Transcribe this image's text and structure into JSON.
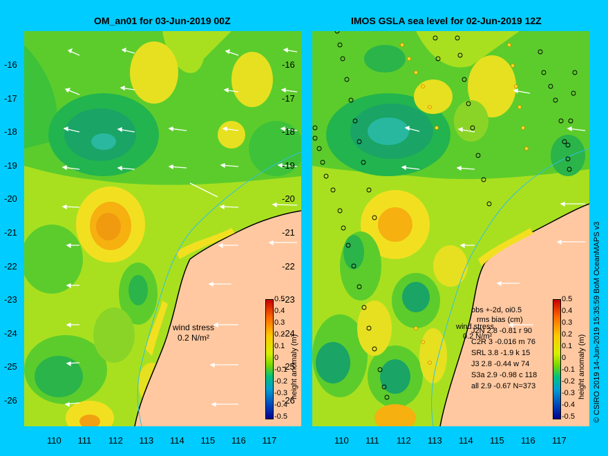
{
  "left_panel": {
    "title": "OM_an01 for 03-Jun-2019 00Z"
  },
  "right_panel": {
    "title": "IMOS GSLA sea level  for 02-Jun-2019 12Z"
  },
  "lat_ticks": [
    "-16",
    "-17",
    "-18",
    "-19",
    "-20",
    "-21",
    "-22",
    "-23",
    "-24",
    "-25",
    "-26"
  ],
  "lon_ticks": [
    "110",
    "111",
    "112",
    "113",
    "114",
    "115",
    "116",
    "117"
  ],
  "colorbar": {
    "label": "height anomaly (m)",
    "ticks": [
      "0.5",
      "0.4",
      "0.3",
      "0.2",
      "0.1",
      "0",
      "-0.1",
      "-0.2",
      "-0.3",
      "-0.4",
      "-0.5"
    ]
  },
  "wind_stress": {
    "label": "wind stress",
    "scale": "0.2 N/m²"
  },
  "stats": {
    "header1": "obs +-2d, oi0.5",
    "header2": "rms  bias (cm)",
    "rows": [
      "J2N   2.8 -0.81 r 90",
      "C2R    3 -0.016 m 76",
      "SRL    3.8 -1.9 k 15",
      "J3     2.8 -0.44 w 74",
      "S3a    2.9 -0.98 c 118",
      "all    2.9 -0.67 N=373"
    ]
  },
  "credit": "© CSIRO 2019  14-Jun-2019 15:35:59 BoM OceanMAPS v3"
}
